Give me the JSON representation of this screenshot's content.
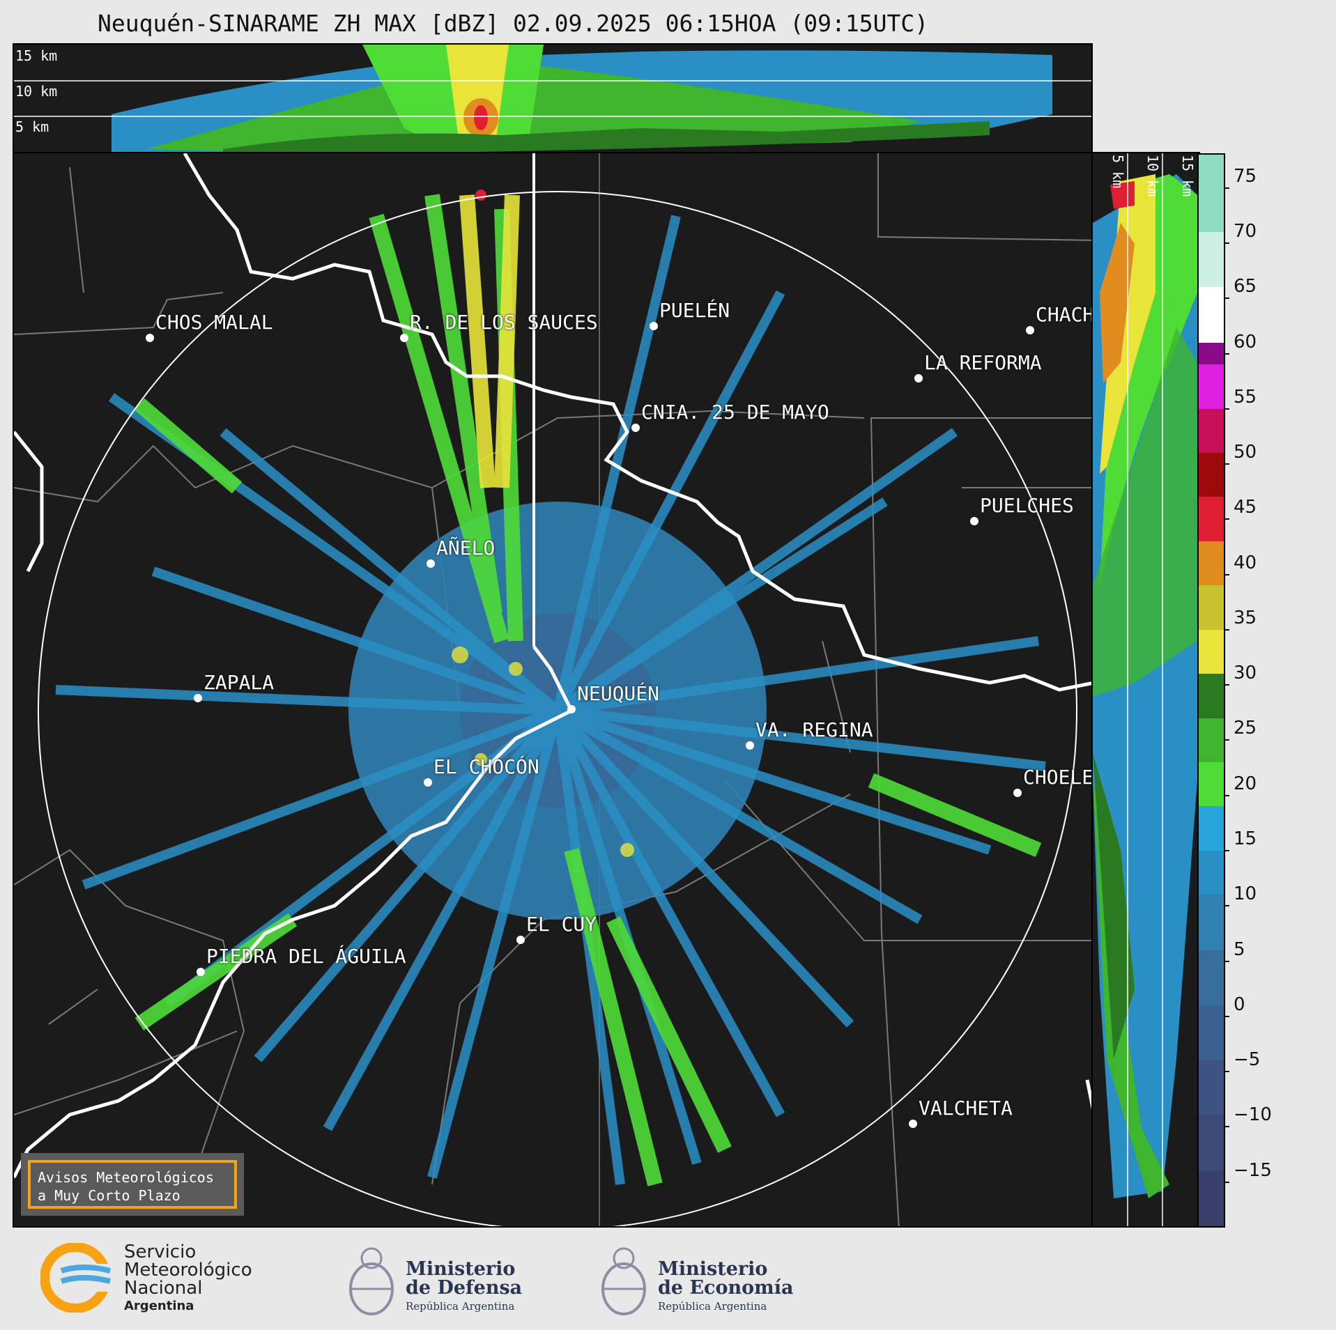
{
  "title": "Neuquén-SINARAME ZH MAX [dBZ] 02.09.2025 06:15HOA (09:15UTC)",
  "top_panel": {
    "labels": [
      "15 km",
      "10 km",
      "5 km"
    ]
  },
  "side_panel": {
    "labels": [
      "5 km",
      "10 km",
      "15 km"
    ]
  },
  "cities": [
    {
      "name": "CHOS MALAL"
    },
    {
      "name": "R. DE LOS SAUCES"
    },
    {
      "name": "PUELÉN"
    },
    {
      "name": "CHACH"
    },
    {
      "name": "LA REFORMA"
    },
    {
      "name": "CNIA. 25 DE MAYO"
    },
    {
      "name": "PUELCHES"
    },
    {
      "name": "AÑELO"
    },
    {
      "name": "ZAPALA"
    },
    {
      "name": "NEUQUÉN"
    },
    {
      "name": "VA. REGINA"
    },
    {
      "name": "EL CHOCÓN"
    },
    {
      "name": "CHOELE"
    },
    {
      "name": "EL CUY"
    },
    {
      "name": "PIEDRA DEL ÁGUILA"
    },
    {
      "name": "VALCHETA"
    }
  ],
  "notice": {
    "line1": "Avisos Meteorológicos",
    "line2": "a Muy Corto Plazo"
  },
  "colorbar": {
    "unit": "dBZ",
    "min": -20,
    "max": 77,
    "ticks": [
      "75",
      "70",
      "65",
      "60",
      "55",
      "50",
      "45",
      "40",
      "35",
      "30",
      "25",
      "20",
      "15",
      "10",
      "5",
      "0",
      "−5",
      "−10",
      "−15"
    ],
    "tick_values": [
      75,
      70,
      65,
      60,
      55,
      50,
      45,
      40,
      35,
      30,
      25,
      20,
      15,
      10,
      5,
      0,
      -5,
      -10,
      -15
    ],
    "segments": [
      {
        "from": -20,
        "to": -15,
        "color": "#3b3f6b"
      },
      {
        "from": -15,
        "to": -10,
        "color": "#3d4977"
      },
      {
        "from": -10,
        "to": -5,
        "color": "#3d5483"
      },
      {
        "from": -5,
        "to": 0,
        "color": "#3b6190"
      },
      {
        "from": 0,
        "to": 5,
        "color": "#376e9c"
      },
      {
        "from": 5,
        "to": 10,
        "color": "#3080b2"
      },
      {
        "from": 10,
        "to": 14,
        "color": "#2a8fc5"
      },
      {
        "from": 14,
        "to": 18,
        "color": "#27a4da"
      },
      {
        "from": 18,
        "to": 22,
        "color": "#4fdc37"
      },
      {
        "from": 22,
        "to": 26,
        "color": "#3fb52e"
      },
      {
        "from": 26,
        "to": 30,
        "color": "#2a7a22"
      },
      {
        "from": 30,
        "to": 34,
        "color": "#e8e43a"
      },
      {
        "from": 34,
        "to": 38,
        "color": "#c8c22f"
      },
      {
        "from": 38,
        "to": 42,
        "color": "#e08c1e"
      },
      {
        "from": 42,
        "to": 46,
        "color": "#e01e32"
      },
      {
        "from": 46,
        "to": 50,
        "color": "#9e0a0a"
      },
      {
        "from": 50,
        "to": 54,
        "color": "#c8105a"
      },
      {
        "from": 54,
        "to": 58,
        "color": "#e020e0"
      },
      {
        "from": 58,
        "to": 60,
        "color": "#8a0a8a"
      },
      {
        "from": 60,
        "to": 65,
        "color": "#ffffff"
      },
      {
        "from": 65,
        "to": 70,
        "color": "#cdf0e2"
      },
      {
        "from": 70,
        "to": 77,
        "color": "#8edcc0"
      }
    ]
  },
  "footer": {
    "smn": {
      "line1": "Servicio",
      "line2": "Meteorológico",
      "line3": "Nacional",
      "sub": "Argentina"
    },
    "defensa": {
      "line1": "Ministerio",
      "line2": "de Defensa",
      "sub": "República Argentina"
    },
    "economia": {
      "line1": "Ministerio",
      "line2": "de Economía",
      "sub": "República Argentina"
    }
  },
  "colors": {
    "panel_bg": "#1b1b1b",
    "border_line": "#ffffff",
    "notice_border": "#f6a313"
  }
}
